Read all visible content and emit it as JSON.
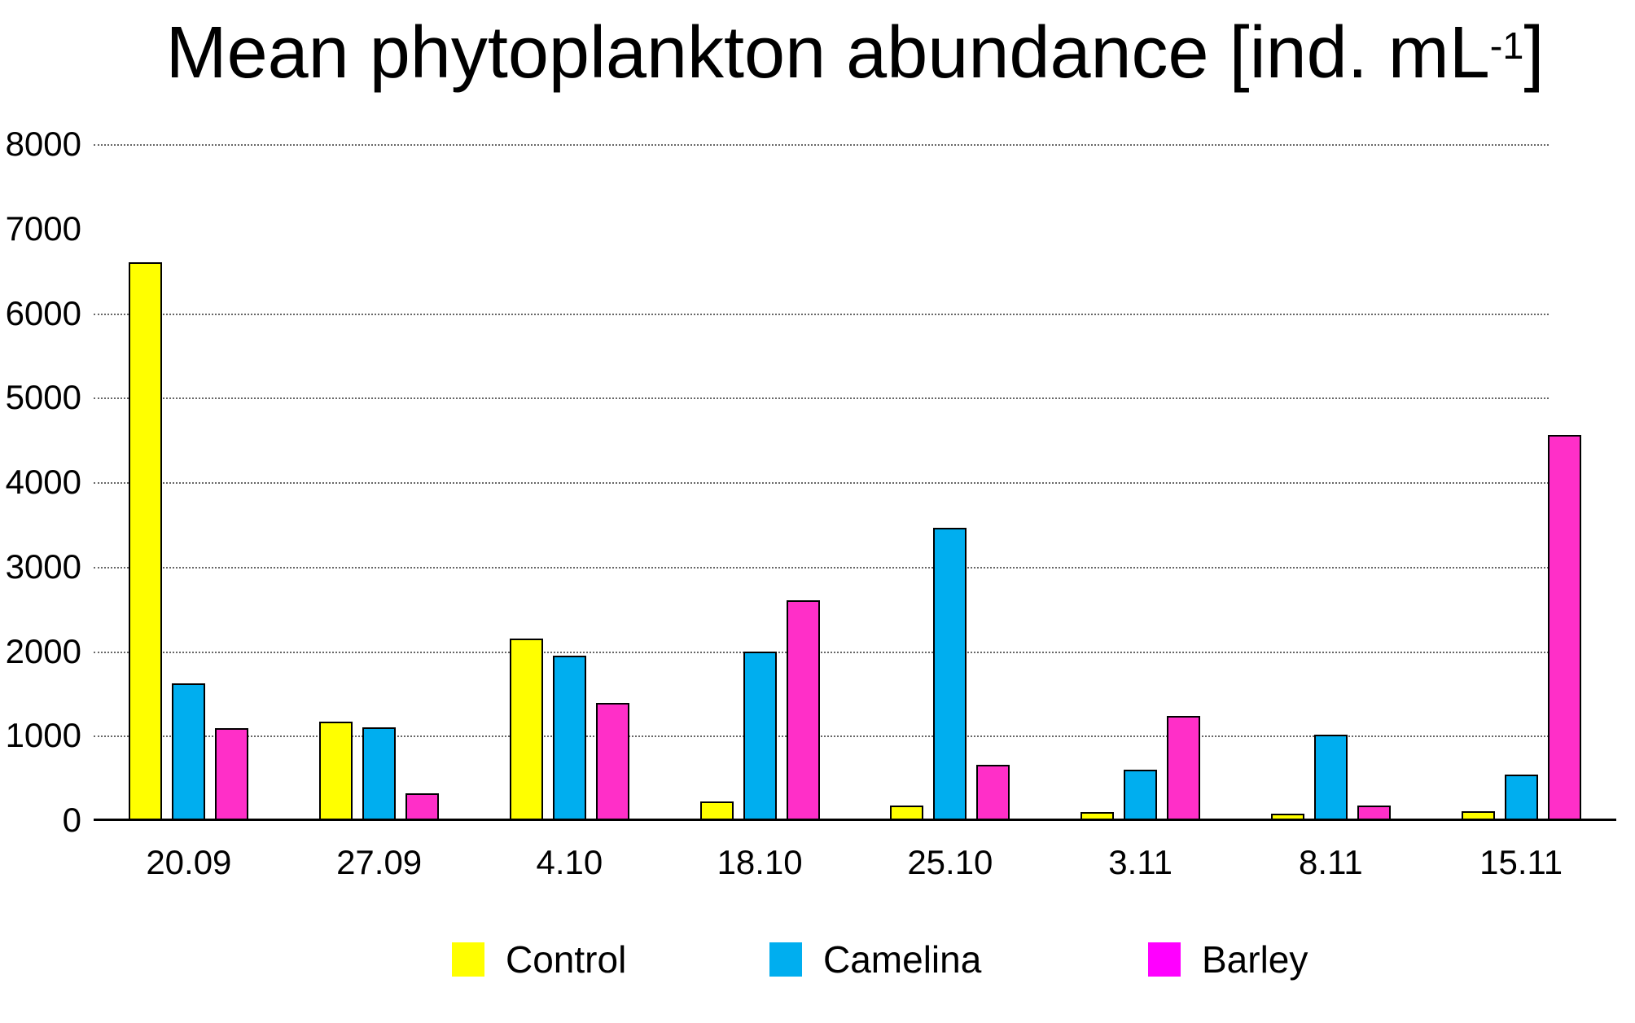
{
  "title": {
    "prefix": "Mean phytoplankton abundance [ind. mL",
    "sup": "-1",
    "suffix": "]"
  },
  "chart_data": {
    "type": "bar",
    "title": "Mean phytoplankton abundance [ind. mL^-1]",
    "categories": [
      "20.09",
      "27.09",
      "4.10",
      "18.10",
      "25.10",
      "3.11",
      "8.11",
      "15.11"
    ],
    "series": [
      {
        "name": "Control",
        "color": "#ffff00",
        "values": [
          6600,
          1170,
          2150,
          220,
          170,
          95,
          80,
          110
        ]
      },
      {
        "name": "Camelina",
        "color": "#00aeef",
        "values": [
          1620,
          1100,
          1950,
          2000,
          3460,
          600,
          1010,
          540
        ]
      },
      {
        "name": "Barley",
        "color": "#ff2fc8",
        "values": [
          1090,
          320,
          1390,
          2600,
          660,
          1230,
          170,
          4560
        ]
      }
    ],
    "xlabel": "",
    "ylabel": "",
    "ylim": [
      0,
      8000
    ],
    "ytick_labels": [
      "8000",
      "7000",
      "6000",
      "5000",
      "4000",
      "3000",
      "2000",
      "1000",
      "0"
    ],
    "yticks": [
      8000,
      7000,
      6000,
      5000,
      4000,
      3000,
      2000,
      1000,
      0
    ],
    "gridlines_at": [
      8000,
      6000,
      5000,
      4000,
      3000,
      2000,
      1000
    ],
    "grid": "horizontal dotted",
    "legend_position": "bottom"
  },
  "legend": {
    "items": [
      {
        "label": "Control",
        "swatch_color": "#ffff00"
      },
      {
        "label": "Camelina",
        "swatch_color": "#00aeef"
      },
      {
        "label": "Barley",
        "swatch_color": "#ff00ff"
      }
    ]
  },
  "colors": {
    "background": "#ffffff",
    "text": "#000000",
    "bar_outline": "#000000",
    "gridline": "#4d4d4d",
    "baseline": "#000000"
  }
}
